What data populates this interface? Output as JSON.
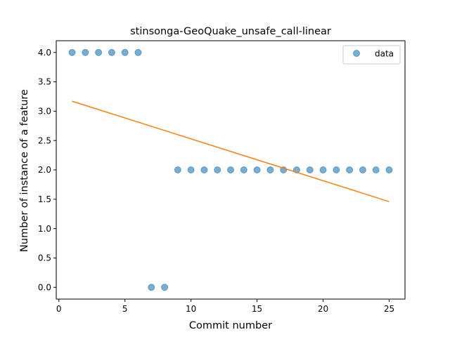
{
  "chart_data": {
    "type": "scatter",
    "title": "stinsonga-GeoQuake_unsafe_call-linear",
    "xlabel": "Commit number",
    "ylabel": "Number of instance of a feature",
    "xlim": [
      -0.2,
      26.2
    ],
    "ylim": [
      -0.2,
      4.2
    ],
    "xticks": [
      0,
      5,
      10,
      15,
      20,
      25
    ],
    "xtick_labels": [
      "0",
      "5",
      "10",
      "15",
      "20",
      "25"
    ],
    "yticks": [
      0.0,
      0.5,
      1.0,
      1.5,
      2.0,
      2.5,
      3.0,
      3.5,
      4.0
    ],
    "ytick_labels": [
      "0.0",
      "0.5",
      "1.0",
      "1.5",
      "2.0",
      "2.5",
      "3.0",
      "3.5",
      "4.0"
    ],
    "grid": false,
    "legend_position": "top-right",
    "series": [
      {
        "name": "data",
        "kind": "scatter",
        "color": "#1f77b4",
        "x": [
          1,
          2,
          3,
          4,
          5,
          6,
          7,
          8,
          9,
          10,
          11,
          12,
          13,
          14,
          15,
          16,
          17,
          18,
          19,
          20,
          21,
          22,
          23,
          24,
          25
        ],
        "y": [
          4,
          4,
          4,
          4,
          4,
          4,
          0,
          0,
          2,
          2,
          2,
          2,
          2,
          2,
          2,
          2,
          2,
          2,
          2,
          2,
          2,
          2,
          2,
          2,
          2
        ]
      },
      {
        "kind": "line",
        "color": "#ff7f0e",
        "x": [
          1,
          25
        ],
        "y": [
          3.17,
          1.46
        ]
      }
    ]
  }
}
